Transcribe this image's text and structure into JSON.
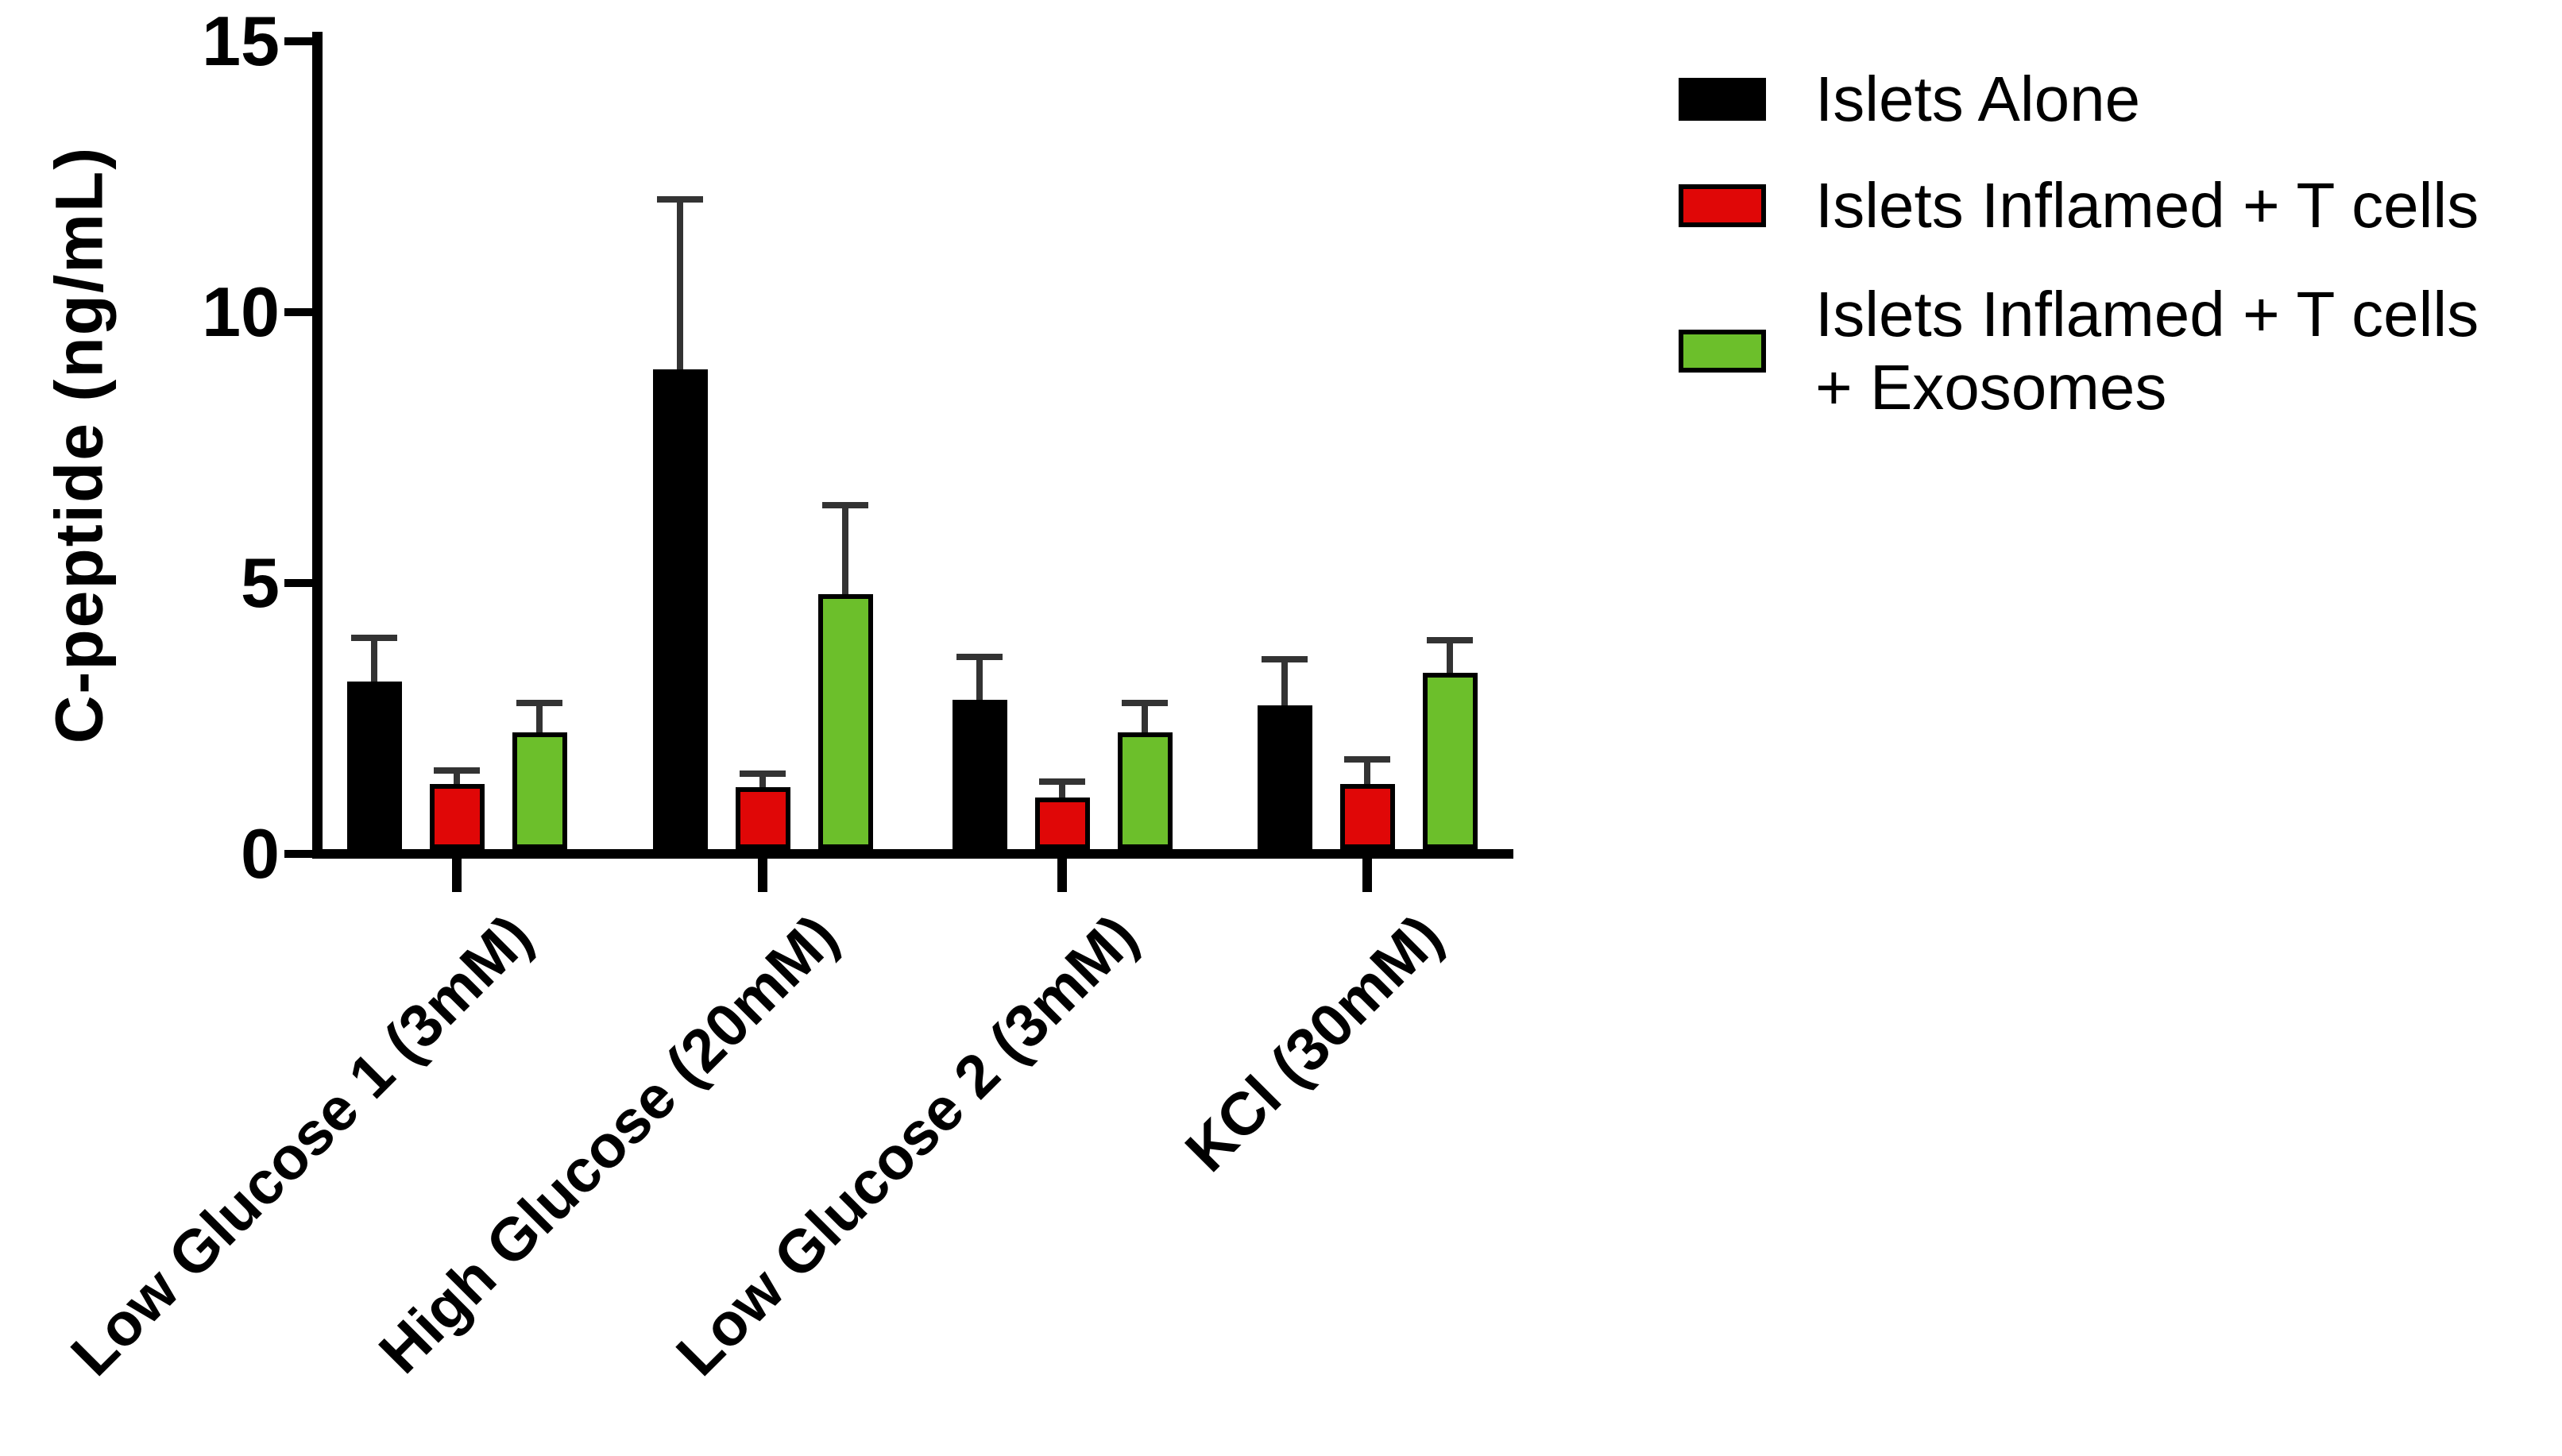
{
  "figure": {
    "background": "#ffffff",
    "accent_colors": {
      "black_series": "#000000",
      "red_series": "#e00707",
      "green_series": "#6cbf2b",
      "error_bar": "#333333"
    }
  },
  "chart_data": {
    "type": "bar",
    "title": "",
    "xlabel": "",
    "ylabel": "C-peptide (ng/mL)",
    "ylim": [
      0,
      15
    ],
    "yticks": [
      0,
      5,
      10,
      15
    ],
    "grid": false,
    "legend_position": "top-right",
    "categories": [
      "Low Glucose 1 (3mM)",
      "High Glucose (20mM)",
      "Low Glucose 2 (3mM)",
      "KCl (30mM)"
    ],
    "series": [
      {
        "name": "Islets Alone",
        "color": "#000000",
        "values": [
          3.1,
          8.85,
          2.75,
          2.65
        ],
        "errors_plus": [
          0.8,
          3.15,
          0.8,
          0.85
        ]
      },
      {
        "name": "Islets Inflamed + T cells",
        "color": "#e00707",
        "values": [
          1.2,
          1.15,
          0.95,
          1.2
        ],
        "errors_plus": [
          0.25,
          0.25,
          0.3,
          0.45
        ]
      },
      {
        "name": "Islets Inflamed + T cells + Exosomes",
        "color": "#6cbf2b",
        "values": [
          2.15,
          4.7,
          2.15,
          3.25
        ],
        "errors_plus": [
          0.55,
          1.65,
          0.55,
          0.6
        ]
      }
    ]
  },
  "legend": {
    "items": [
      {
        "color": "#000000",
        "lines": [
          "Islets Alone"
        ]
      },
      {
        "color": "#e00707",
        "lines": [
          "Islets Inflamed + T cells"
        ]
      },
      {
        "color": "#6cbf2b",
        "lines": [
          "Islets Inflamed + T cells",
          "+ Exosomes"
        ]
      }
    ]
  }
}
